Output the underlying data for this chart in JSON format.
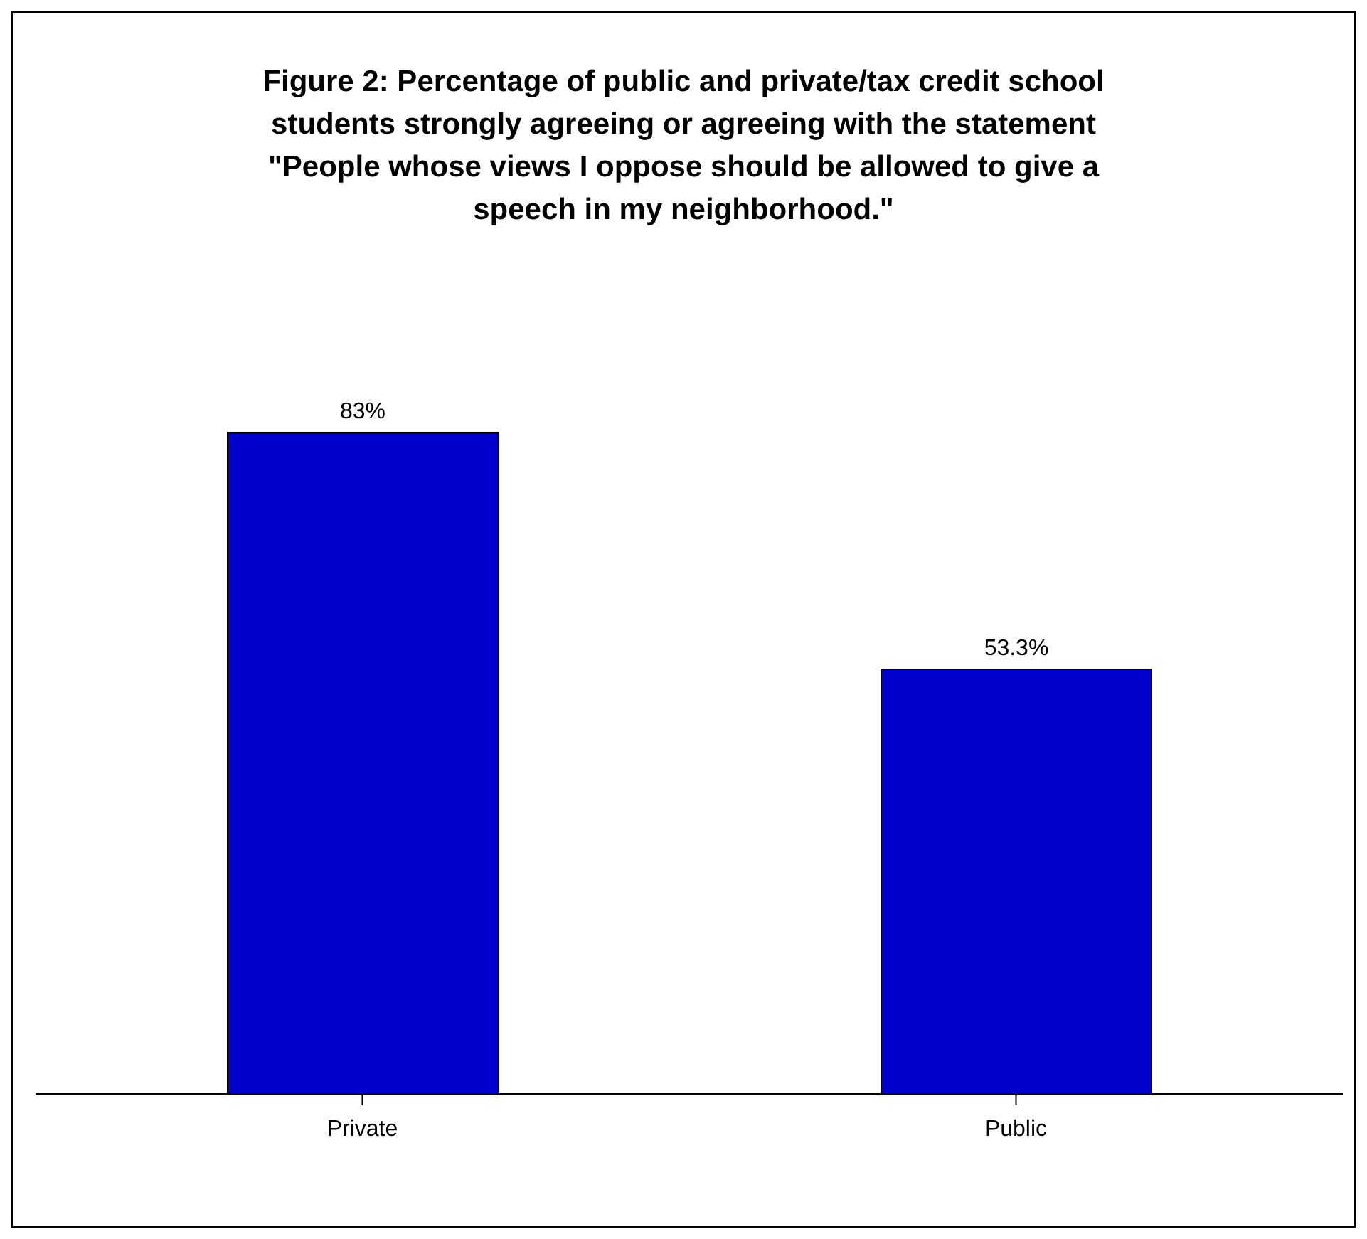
{
  "chart_data": {
    "type": "bar",
    "title": "Figure 2: Percentage of public and private/tax credit school students strongly agreeing or agreeing with the statement \"People whose views I oppose should be allowed to give a speech in my neighborhood.\"",
    "categories": [
      "Private",
      "Public"
    ],
    "values": [
      83,
      53.3
    ],
    "value_labels": [
      "83%",
      "53.3%"
    ],
    "color": "#0000cc",
    "legend": false,
    "grid": false
  }
}
